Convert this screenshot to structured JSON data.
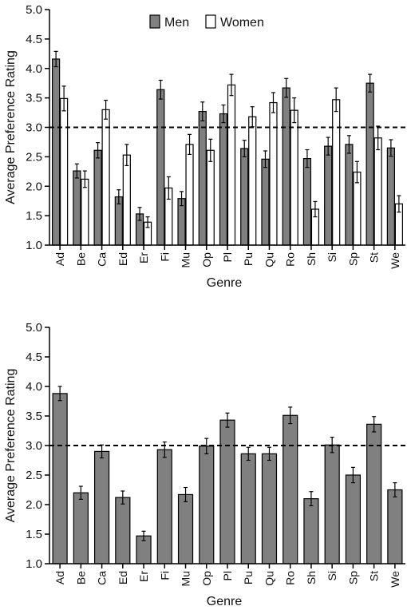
{
  "chart_data": [
    {
      "type": "bar",
      "title": "",
      "xlabel": "Genre",
      "ylabel": "Average Preference Rating",
      "ylim": [
        1.0,
        5.0
      ],
      "yticks": [
        "1.0",
        "1.5",
        "2.0",
        "2.5",
        "3.0",
        "3.5",
        "4.0",
        "4.5",
        "5.0"
      ],
      "reference_line": 3.0,
      "grid": false,
      "legend_position": "top-center",
      "categories": [
        "Ad",
        "Be",
        "Ca",
        "Ed",
        "Er",
        "Fi",
        "Mu",
        "Op",
        "Pl",
        "Pu",
        "Qu",
        "Ro",
        "Sh",
        "Si",
        "Sp",
        "St",
        "We"
      ],
      "series": [
        {
          "name": "Men",
          "color": "#808080",
          "values": [
            4.16,
            2.26,
            2.61,
            1.82,
            1.53,
            3.64,
            1.79,
            3.27,
            3.23,
            2.64,
            2.46,
            3.67,
            2.47,
            2.68,
            2.71,
            3.75,
            2.65
          ],
          "errors": [
            0.13,
            0.12,
            0.13,
            0.12,
            0.11,
            0.16,
            0.12,
            0.16,
            0.15,
            0.14,
            0.14,
            0.16,
            0.15,
            0.15,
            0.15,
            0.15,
            0.14
          ]
        },
        {
          "name": "Women",
          "color": "#ffffff",
          "values": [
            3.49,
            2.12,
            3.3,
            2.53,
            1.39,
            1.97,
            2.71,
            2.61,
            3.72,
            3.18,
            3.42,
            3.29,
            1.61,
            3.47,
            2.24,
            2.82,
            1.7
          ],
          "errors": [
            0.21,
            0.14,
            0.16,
            0.18,
            0.09,
            0.19,
            0.17,
            0.19,
            0.18,
            0.17,
            0.17,
            0.21,
            0.13,
            0.2,
            0.18,
            0.2,
            0.14
          ]
        }
      ]
    },
    {
      "type": "bar",
      "title": "",
      "xlabel": "Genre",
      "ylabel": "Average Preference Rating",
      "ylim": [
        1.0,
        5.0
      ],
      "yticks": [
        "1.0",
        "1.5",
        "2.0",
        "2.5",
        "3.0",
        "3.5",
        "4.0",
        "4.5",
        "5.0"
      ],
      "reference_line": 3.0,
      "grid": false,
      "categories": [
        "Ad",
        "Be",
        "Ca",
        "Ed",
        "Er",
        "Fi",
        "Mu",
        "Op",
        "Pl",
        "Pu",
        "Qu",
        "Ro",
        "Sh",
        "Si",
        "Sp",
        "St",
        "We"
      ],
      "series": [
        {
          "color": "#808080",
          "values": [
            3.88,
            2.2,
            2.9,
            2.12,
            1.47,
            2.93,
            2.17,
            2.99,
            3.43,
            2.86,
            2.86,
            3.51,
            2.1,
            3.01,
            2.5,
            3.36,
            2.25
          ],
          "errors": [
            0.12,
            0.11,
            0.11,
            0.11,
            0.08,
            0.13,
            0.12,
            0.13,
            0.12,
            0.11,
            0.11,
            0.14,
            0.12,
            0.13,
            0.13,
            0.13,
            0.12
          ]
        }
      ]
    }
  ]
}
